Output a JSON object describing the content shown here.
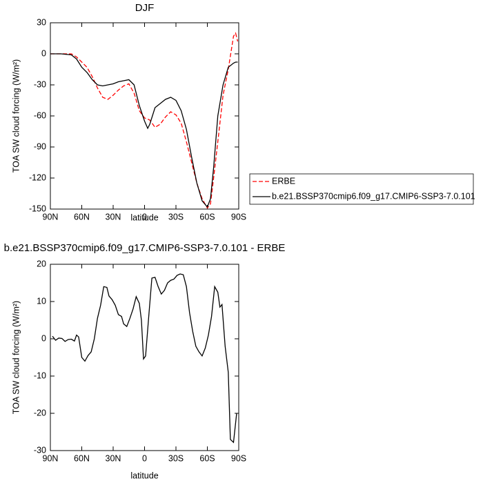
{
  "chart_data": [
    {
      "type": "line",
      "title": "DJF",
      "xlabel": "latitude",
      "ylabel": "TOA SW cloud forcing (W/m²)",
      "x": [
        90,
        80,
        70,
        65,
        60,
        55,
        50,
        45,
        40,
        35,
        30,
        25,
        20,
        15,
        10,
        5,
        0,
        -3,
        -5,
        -10,
        -15,
        -20,
        -25,
        -30,
        -35,
        -40,
        -45,
        -50,
        -55,
        -60,
        -63,
        -66,
        -70,
        -75,
        -80,
        -85,
        -87,
        -89
      ],
      "xlim": [
        90,
        -90
      ],
      "xticks": [
        {
          "value": 90,
          "label": "90N"
        },
        {
          "value": 60,
          "label": "60N"
        },
        {
          "value": 30,
          "label": "30N"
        },
        0,
        {
          "value": -30,
          "label": "30S"
        },
        {
          "value": -60,
          "label": "60S"
        },
        {
          "value": -90,
          "label": "90S"
        }
      ],
      "ylim": [
        -150,
        30
      ],
      "yticks": [
        30,
        0,
        -30,
        -60,
        -90,
        -120,
        -150
      ],
      "legend": "right",
      "series": [
        {
          "name": "ERBE",
          "color": "#ff0000",
          "linestyle": "dashed",
          "values": [
            0,
            0,
            0,
            -3,
            -8,
            -13,
            -22,
            -33,
            -42,
            -44,
            -40,
            -35,
            -31,
            -29,
            -38,
            -55,
            -62,
            -63,
            -64,
            -71,
            -68,
            -61,
            -56,
            -59,
            -67,
            -85,
            -105,
            -125,
            -140,
            -149,
            -145,
            -120,
            -85,
            -40,
            -15,
            17,
            20,
            12
          ]
        },
        {
          "name": "b.e21.BSSP370cmip6.f09_g17.CMIP6-SSP3-7.0.101",
          "color": "#000000",
          "linestyle": "solid",
          "values": [
            0,
            0,
            -1,
            -5,
            -13,
            -18,
            -25,
            -30,
            -31,
            -30,
            -29,
            -27,
            -26,
            -25,
            -30,
            -50,
            -65,
            -72,
            -68,
            -52,
            -48,
            -44,
            -42,
            -45,
            -55,
            -73,
            -100,
            -125,
            -142,
            -148,
            -140,
            -110,
            -60,
            -30,
            -13,
            -9,
            -8,
            -8
          ]
        }
      ]
    },
    {
      "type": "line",
      "title": "b.e21.BSSP370cmip6.f09_g17.CMIP6-SSP3-7.0.101 - ERBE",
      "xlabel": "latitude",
      "ylabel": "TOA SW cloud forcing (W/m²)",
      "x": [
        88,
        85,
        82,
        79,
        76,
        73,
        70,
        67,
        65,
        63,
        60,
        57,
        54,
        51,
        48,
        45,
        42,
        39,
        36,
        34,
        31,
        28,
        25,
        22,
        20,
        17,
        14,
        11,
        8,
        5,
        3,
        1,
        -1,
        -4,
        -7,
        -10,
        -13,
        -16,
        -19,
        -22,
        -25,
        -28,
        -31,
        -34,
        -37,
        -40,
        -43,
        -46,
        -49,
        -52,
        -55,
        -58,
        -61,
        -64,
        -67,
        -70,
        -72,
        -74,
        -77,
        -80,
        -82,
        -85,
        -88
      ],
      "values": [
        0.7,
        -0.4,
        0.2,
        0.1,
        -0.7,
        -0.2,
        -0.1,
        -0.6,
        1,
        0.5,
        -5,
        -6,
        -4.5,
        -3.5,
        0,
        5.5,
        9,
        14,
        13.8,
        11.5,
        10.5,
        9,
        6.5,
        6,
        4,
        3.3,
        5.5,
        8,
        11.3,
        9.5,
        5,
        -5.4,
        -4.6,
        6,
        16.3,
        16.5,
        14,
        12,
        13,
        15,
        15.7,
        16,
        17,
        17.4,
        17.2,
        14,
        7,
        2,
        -2,
        -3.5,
        -4.6,
        -2.5,
        1,
        6,
        14,
        12.5,
        8.5,
        9.2,
        -2,
        -9,
        -27,
        -27.8,
        -20
      ],
      "color": "#000000",
      "linestyle": "solid",
      "xlim": [
        90,
        -90
      ],
      "xticks": [
        {
          "value": 90,
          "label": "90N"
        },
        {
          "value": 60,
          "label": "60N"
        },
        {
          "value": 30,
          "label": "30N"
        },
        0,
        {
          "value": -30,
          "label": "30S"
        },
        {
          "value": -60,
          "label": "60S"
        },
        {
          "value": -90,
          "label": "90S"
        }
      ],
      "ylim": [
        -30,
        20
      ],
      "yticks": [
        20,
        10,
        0,
        -10,
        -20,
        -30
      ]
    }
  ]
}
